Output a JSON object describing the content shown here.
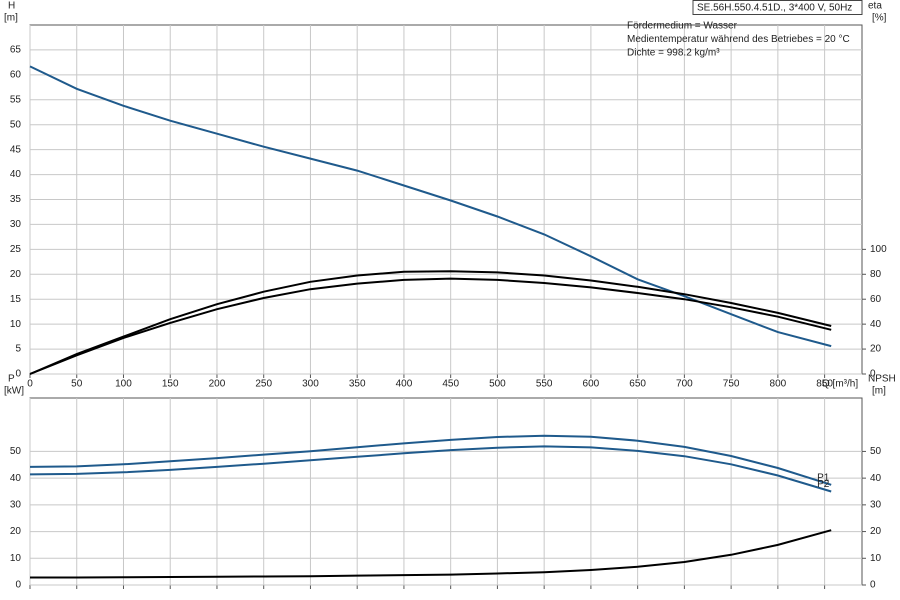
{
  "chart_data": [
    {
      "type": "line",
      "title": "SE.56H.550.4.51D., 3*400 V, 50Hz",
      "annotations": [
        "Fördermedium = Wasser",
        "Medientemperatur während des Betriebes = 20 °C",
        "Dichte = 998.2 kg/m³"
      ],
      "y_label": "H",
      "y_unit": "[m]",
      "y2_label": "eta",
      "y2_unit": "[%]",
      "x_label": "Q [m³/h]",
      "x": [
        0,
        50,
        100,
        150,
        200,
        250,
        300,
        350,
        400,
        450,
        500,
        550,
        600,
        650,
        700,
        750,
        800,
        857
      ],
      "xlim": [
        0,
        890
      ],
      "xticks": [
        0,
        50,
        100,
        150,
        200,
        250,
        300,
        350,
        400,
        450,
        500,
        550,
        600,
        650,
        700,
        750,
        800,
        850
      ],
      "ylim": [
        0,
        70
      ],
      "yticks": [
        0,
        5,
        10,
        15,
        20,
        25,
        30,
        35,
        40,
        45,
        50,
        55,
        60,
        65
      ],
      "y2lim": [
        0,
        280
      ],
      "y2ticks": [
        0,
        20,
        40,
        60,
        80,
        100
      ],
      "grid": true,
      "series": [
        {
          "color": "#1f5a8c",
          "values": [
            61.7,
            57.2,
            53.8,
            50.8,
            48.2,
            45.6,
            43.2,
            40.8,
            37.8,
            34.8,
            31.6,
            28,
            23.6,
            19,
            15.6,
            12,
            8.4,
            5.6
          ]
        },
        {
          "color": "#000000",
          "axis": "y2",
          "values": [
            0,
            16,
            30,
            44,
            56,
            66,
            74,
            79,
            82,
            82.5,
            81.5,
            79,
            75,
            70,
            64,
            57,
            49,
            38.5
          ]
        },
        {
          "color": "#000000",
          "axis": "y2",
          "values": [
            0,
            15,
            29,
            41,
            52,
            61,
            68,
            72.5,
            75.5,
            76.5,
            75.5,
            73,
            69.5,
            65,
            60,
            53.5,
            46,
            35.5
          ]
        }
      ]
    },
    {
      "type": "line",
      "y_label": "P",
      "y_unit": "[kW]",
      "y2_label": "NPSH",
      "y2_unit": "[m]",
      "x": [
        0,
        50,
        100,
        150,
        200,
        250,
        300,
        350,
        400,
        450,
        500,
        550,
        600,
        650,
        700,
        750,
        800,
        857
      ],
      "xlim": [
        0,
        890
      ],
      "xticks": [
        0,
        50,
        100,
        150,
        200,
        250,
        300,
        350,
        400,
        450,
        500,
        550,
        600,
        650,
        700,
        750,
        800,
        850
      ],
      "x_tick_labels": false,
      "ylim": [
        0,
        70
      ],
      "yticks": [
        0,
        10,
        20,
        30,
        40,
        50
      ],
      "y2lim": [
        0,
        70
      ],
      "y2ticks": [
        0,
        10,
        20,
        30,
        40,
        50
      ],
      "grid": true,
      "series": [
        {
          "name": "P1",
          "color": "#1f5a8c",
          "values": [
            44.2,
            44.4,
            45.2,
            46.3,
            47.5,
            48.8,
            50.1,
            51.6,
            53,
            54.3,
            55.4,
            55.9,
            55.5,
            54,
            51.7,
            48.3,
            43.8,
            37.5
          ]
        },
        {
          "name": "P2",
          "color": "#1f5a8c",
          "values": [
            41.4,
            41.6,
            42.2,
            43.1,
            44.2,
            45.4,
            46.7,
            48,
            49.3,
            50.5,
            51.4,
            51.9,
            51.5,
            50.2,
            48.2,
            45.2,
            41,
            35
          ]
        },
        {
          "color": "#000000",
          "axis": "y2",
          "values": [
            2.8,
            2.8,
            2.9,
            3,
            3.1,
            3.2,
            3.3,
            3.5,
            3.7,
            3.9,
            4.3,
            4.8,
            5.6,
            6.8,
            8.6,
            11.3,
            15,
            20.5
          ]
        }
      ]
    }
  ]
}
